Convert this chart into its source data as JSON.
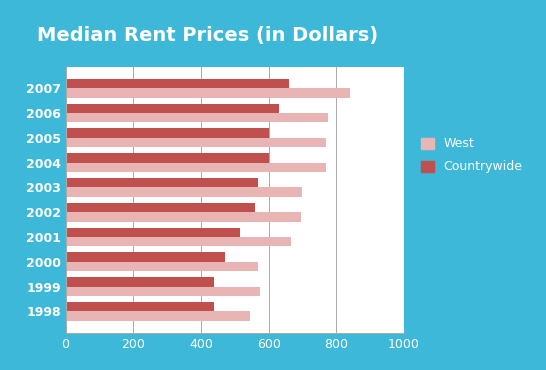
{
  "title": "Median Rent Prices (in Dollars)",
  "years": [
    "2007",
    "2006",
    "2005",
    "2004",
    "2003",
    "2002",
    "2001",
    "2000",
    "1999",
    "1998"
  ],
  "west": [
    840,
    775,
    770,
    770,
    700,
    695,
    665,
    570,
    575,
    545
  ],
  "countrywide": [
    660,
    630,
    600,
    600,
    570,
    560,
    515,
    470,
    440,
    440
  ],
  "west_color": "#e8b4b4",
  "countrywide_color": "#c0504d",
  "background_color": "#3db8d8",
  "plot_bg_color": "#ffffff",
  "title_color": "#ffffff",
  "tick_color": "#ffffff",
  "xlim": [
    0,
    1000
  ],
  "bar_height": 0.38,
  "gridline_color": "#aaaaaa",
  "legend_west_label": "West",
  "legend_cw_label": "Countrywide",
  "title_fontsize": 14,
  "tick_fontsize": 9,
  "legend_fontsize": 9
}
